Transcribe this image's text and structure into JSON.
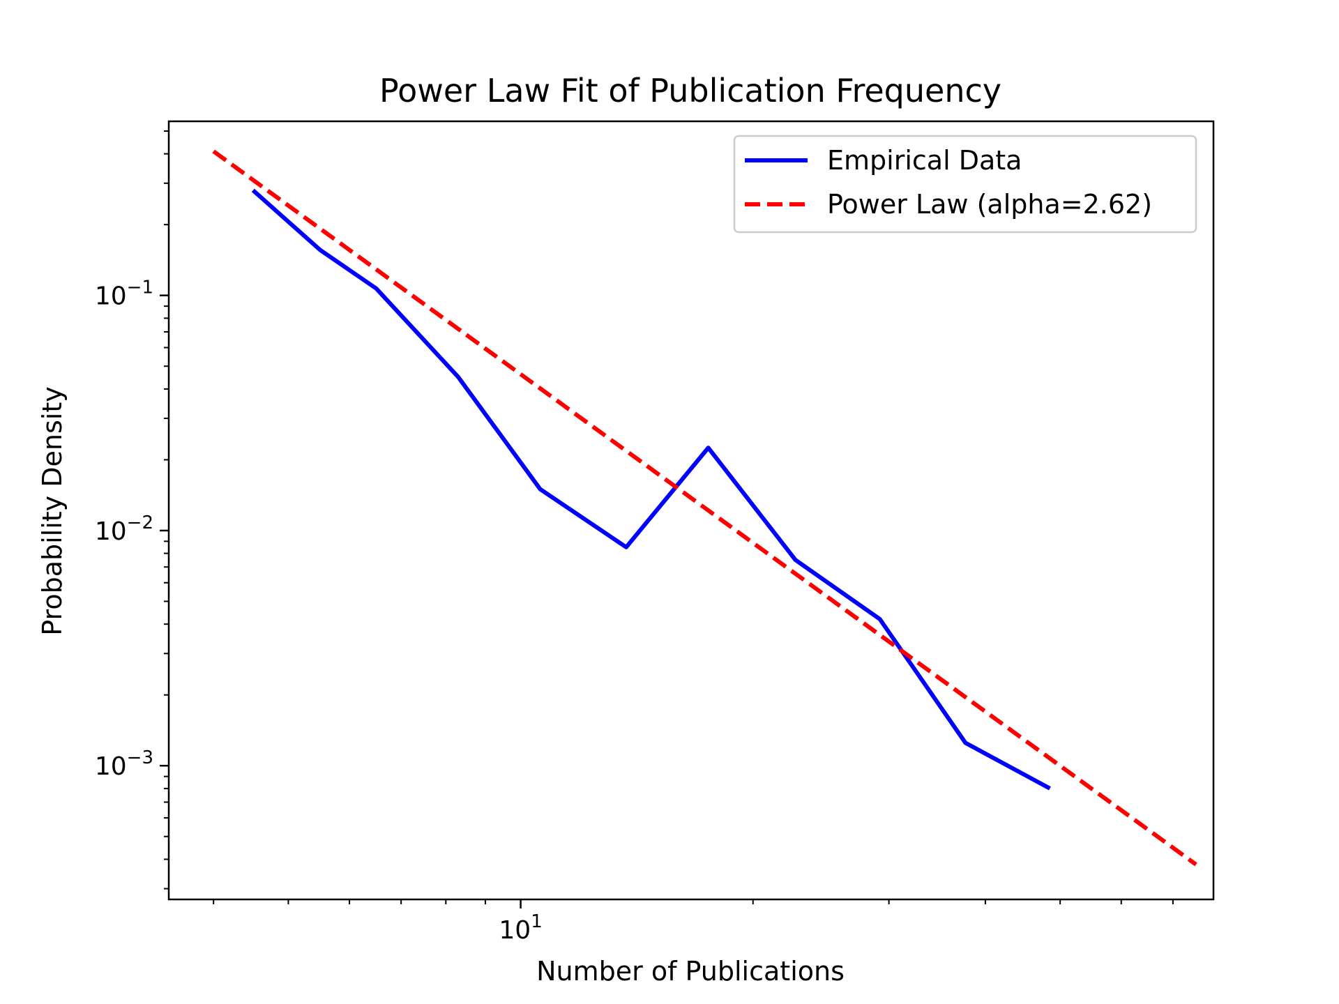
{
  "chart_data": {
    "type": "line",
    "title": "Power Law Fit of Publication Frequency",
    "xlabel": "Number of Publications",
    "ylabel": "Probability Density",
    "xscale": "log",
    "yscale": "log",
    "xlim": [
      3.5,
      79
    ],
    "ylim": [
      0.00027,
      0.55
    ],
    "grid": false,
    "legend_position": "top-right",
    "x_ticks": [
      {
        "value": 10,
        "base": "10",
        "exp": "1"
      }
    ],
    "y_ticks": [
      {
        "value": 0.1,
        "base": "10",
        "exp": "−1"
      },
      {
        "value": 0.01,
        "base": "10",
        "exp": "−2"
      },
      {
        "value": 0.001,
        "base": "10",
        "exp": "−3"
      }
    ],
    "series": [
      {
        "name": "Empirical Data",
        "color": "#0000ff",
        "style": "solid",
        "x": [
          4.5,
          5.5,
          6.5,
          8.3,
          10.6,
          13.7,
          17.5,
          22.7,
          29.2,
          37.7,
          48.5
        ],
        "y": [
          0.28,
          0.156,
          0.107,
          0.045,
          0.015,
          0.0085,
          0.0225,
          0.0075,
          0.0042,
          0.00125,
          0.0008
        ]
      },
      {
        "name": "Power Law (alpha=2.62)",
        "color": "#ff0000",
        "style": "dashed",
        "x": [
          4.0,
          75.0
        ],
        "y": [
          0.41,
          0.00038
        ]
      }
    ]
  }
}
